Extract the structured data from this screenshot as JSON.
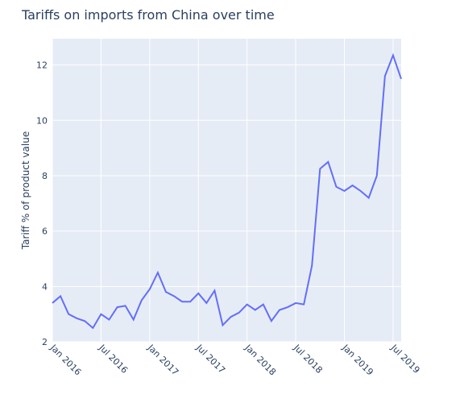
{
  "chart_data": {
    "type": "line",
    "title": "Tariffs on imports from China over time",
    "y_label": "Tariff % of product value",
    "x": [
      "2016-01",
      "2016-02",
      "2016-03",
      "2016-04",
      "2016-05",
      "2016-06",
      "2016-07",
      "2016-08",
      "2016-09",
      "2016-10",
      "2016-11",
      "2016-12",
      "2017-01",
      "2017-02",
      "2017-03",
      "2017-04",
      "2017-05",
      "2017-06",
      "2017-07",
      "2017-08",
      "2017-09",
      "2017-10",
      "2017-11",
      "2017-12",
      "2018-01",
      "2018-02",
      "2018-03",
      "2018-04",
      "2018-05",
      "2018-06",
      "2018-07",
      "2018-08",
      "2018-09",
      "2018-10",
      "2018-11",
      "2018-12",
      "2019-01",
      "2019-02",
      "2019-03",
      "2019-04",
      "2019-05",
      "2019-06",
      "2019-07",
      "2019-08"
    ],
    "series": [
      {
        "name": "Tariff",
        "color": "#636efa",
        "values": [
          3.4,
          3.65,
          3.0,
          2.85,
          2.75,
          2.5,
          3.0,
          2.8,
          3.25,
          3.3,
          2.8,
          3.5,
          3.9,
          4.5,
          3.8,
          3.65,
          3.45,
          3.45,
          3.75,
          3.4,
          3.85,
          2.6,
          2.9,
          3.05,
          3.35,
          3.15,
          3.35,
          2.75,
          3.15,
          3.25,
          3.4,
          3.35,
          4.75,
          8.25,
          8.5,
          7.6,
          7.45,
          7.65,
          7.45,
          7.2,
          8.0,
          11.6,
          12.35,
          11.5
        ]
      }
    ],
    "xlim": [
      "2016-01",
      "2019-08"
    ],
    "xticks": [
      {
        "value": "2016-01",
        "label": "Jan 2016"
      },
      {
        "value": "2016-07",
        "label": "Jul 2016"
      },
      {
        "value": "2017-01",
        "label": "Jan 2017"
      },
      {
        "value": "2017-07",
        "label": "Jul 2017"
      },
      {
        "value": "2018-01",
        "label": "Jan 2018"
      },
      {
        "value": "2018-07",
        "label": "Jul 2018"
      },
      {
        "value": "2019-01",
        "label": "Jan 2019"
      },
      {
        "value": "2019-07",
        "label": "Jul 2019"
      }
    ],
    "ylim": [
      2,
      12.95
    ],
    "yticks": [
      2,
      4,
      6,
      8,
      10,
      12
    ],
    "grid": true,
    "background": "#e5ecf6"
  }
}
